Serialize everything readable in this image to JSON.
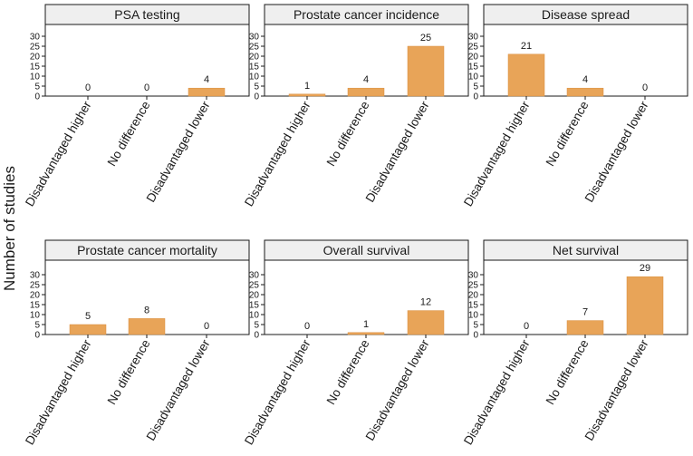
{
  "chart_data": {
    "type": "bar",
    "ylabel": "Number of studies",
    "ylim": [
      0,
      35
    ],
    "yticks": [
      0,
      5,
      10,
      15,
      20,
      25,
      30
    ],
    "categories": [
      "Disadvantaged higher",
      "No difference",
      "Disadvantaged lower"
    ],
    "bar_color": "#e8a458",
    "panels": [
      {
        "title": "PSA testing",
        "values": [
          0,
          0,
          4
        ]
      },
      {
        "title": "Prostate cancer incidence",
        "values": [
          1,
          4,
          25
        ]
      },
      {
        "title": "Disease spread",
        "values": [
          21,
          4,
          0
        ]
      },
      {
        "title": "Prostate cancer mortality",
        "values": [
          5,
          8,
          0
        ]
      },
      {
        "title": "Overall survival",
        "values": [
          0,
          1,
          12
        ]
      },
      {
        "title": "Net survival",
        "values": [
          0,
          7,
          29
        ]
      }
    ]
  }
}
